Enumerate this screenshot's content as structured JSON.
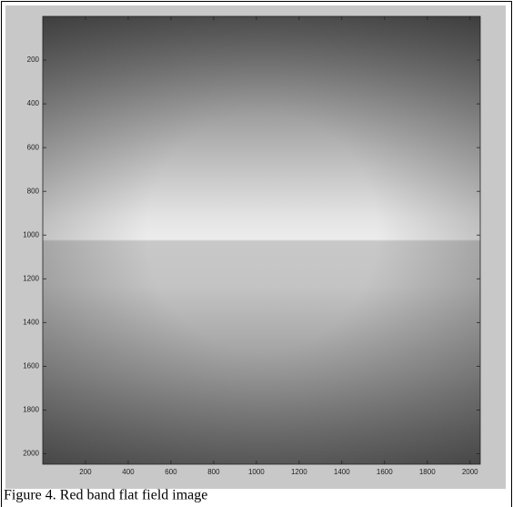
{
  "chart_data": {
    "type": "image",
    "caption": "Figure 4. Red band flat field image",
    "xlim": [
      0,
      2048
    ],
    "ylim": [
      0,
      2048
    ],
    "y_reversed": true,
    "xticks": [
      200,
      400,
      600,
      800,
      1000,
      1200,
      1400,
      1600,
      1800,
      2000
    ],
    "yticks": [
      200,
      400,
      600,
      800,
      1000,
      1200,
      1400,
      1600,
      1800,
      2000
    ]
  }
}
